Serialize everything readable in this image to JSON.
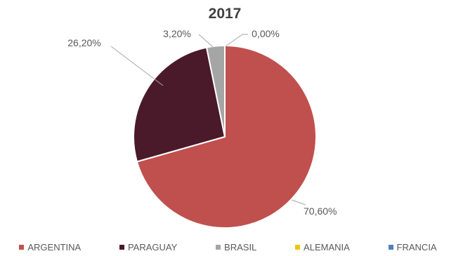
{
  "chart_data": {
    "type": "pie",
    "title": "2017",
    "categories": [
      "ARGENTINA",
      "PARAGUAY",
      "BRASIL",
      "ALEMANIA",
      "FRANCIA"
    ],
    "values": [
      70.6,
      26.2,
      3.2,
      0.0,
      0.0
    ],
    "data_labels": [
      "70,60%",
      "26,20%",
      "3,20%",
      "0,00%",
      ""
    ],
    "colors": [
      "#c0504d",
      "#4a1a2a",
      "#a5a5a5",
      "#f2c314",
      "#4f81bd"
    ],
    "legend_position": "bottom"
  }
}
